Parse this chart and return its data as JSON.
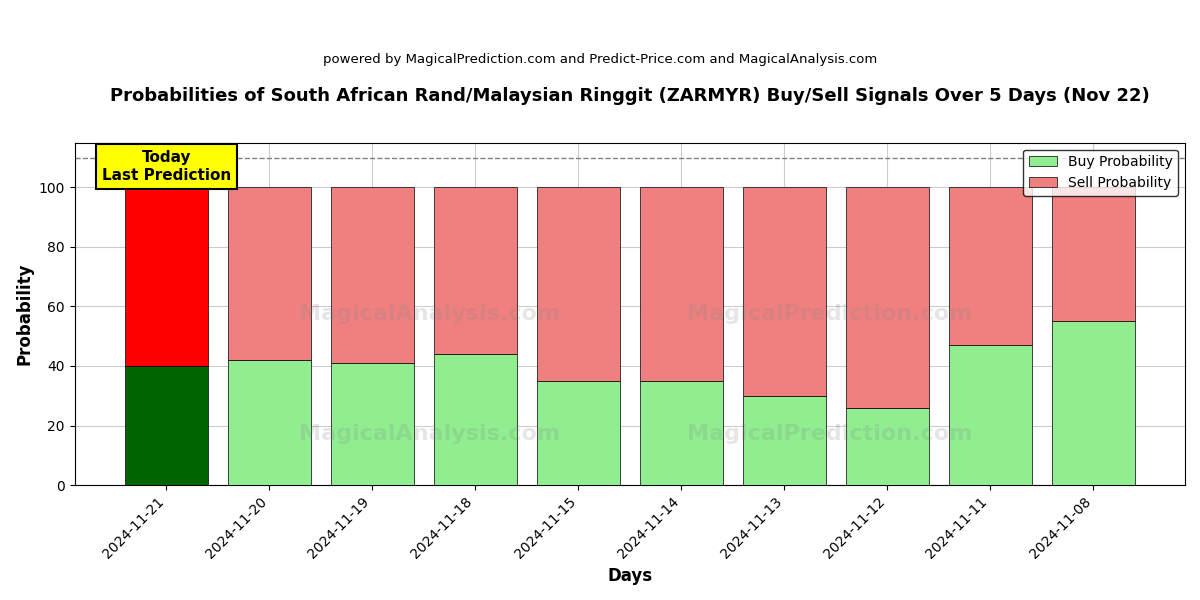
{
  "title": "Probabilities of South African Rand/Malaysian Ringgit (ZARMYR) Buy/Sell Signals Over 5 Days (Nov 22)",
  "subtitle": "powered by MagicalPrediction.com and Predict-Price.com and MagicalAnalysis.com",
  "xlabel": "Days",
  "ylabel": "Probability",
  "categories": [
    "2024-11-21",
    "2024-11-20",
    "2024-11-19",
    "2024-11-18",
    "2024-11-15",
    "2024-11-14",
    "2024-11-13",
    "2024-11-12",
    "2024-11-11",
    "2024-11-08"
  ],
  "buy_values": [
    40,
    42,
    41,
    44,
    35,
    35,
    30,
    26,
    47,
    55
  ],
  "sell_values": [
    60,
    58,
    59,
    56,
    65,
    65,
    70,
    74,
    53,
    45
  ],
  "today_buy_color": "#006400",
  "today_sell_color": "#ff0000",
  "buy_color": "#90EE90",
  "sell_color": "#F08080",
  "today_label_bg": "#ffff00",
  "today_label_text": "Today\nLast Prediction",
  "legend_buy": "Buy Probability",
  "legend_sell": "Sell Probability",
  "ylim": [
    0,
    115
  ],
  "yticks": [
    0,
    20,
    40,
    60,
    80,
    100
  ],
  "dashed_line_y": 110,
  "background_color": "#ffffff",
  "grid_color": "#cccccc"
}
